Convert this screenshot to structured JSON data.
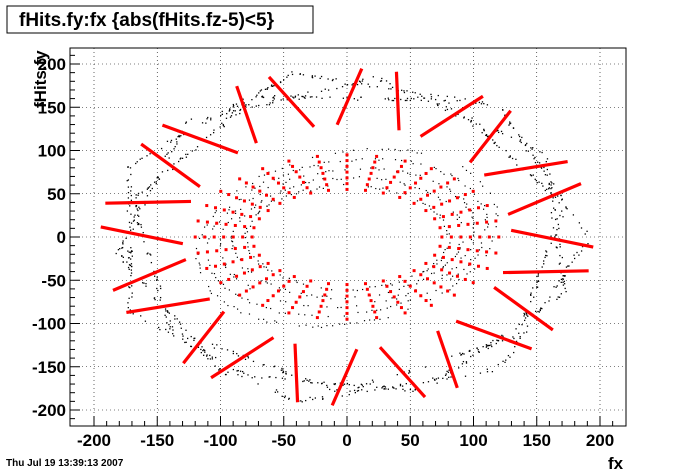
{
  "title": "fHits.fy:fx {abs(fHits.fz-5)<5}",
  "footer": "Thu Jul 19 13:39:13 2007",
  "chart_data": {
    "type": "scatter",
    "title": "fHits.fy:fx {abs(fHits.fz-5)<5}",
    "xlabel": "fx",
    "ylabel": "fHits.fy",
    "xlim": [
      -210,
      220
    ],
    "ylim": [
      -210,
      220
    ],
    "xticks": [
      -200,
      -150,
      -100,
      -50,
      0,
      50,
      100,
      150,
      200
    ],
    "yticks": [
      -200,
      -150,
      -100,
      -50,
      0,
      50,
      100,
      150,
      200
    ],
    "grid": true,
    "colors": {
      "black_hits": "#000000",
      "red_hits": "#ff0000"
    },
    "series": [
      {
        "color": "#000000",
        "marker": "dot",
        "description_points": [
          [
            -190,
            40
          ],
          [
            -185,
            0
          ],
          [
            -180,
            -60
          ],
          [
            -150,
            -110
          ],
          [
            -110,
            -140
          ],
          [
            -60,
            -165
          ],
          [
            0,
            -185
          ],
          [
            60,
            -170
          ],
          [
            120,
            -130
          ],
          [
            165,
            -70
          ],
          [
            190,
            0
          ],
          [
            180,
            60
          ],
          [
            150,
            120
          ],
          [
            100,
            160
          ],
          [
            40,
            185
          ],
          [
            -30,
            180
          ],
          [
            -90,
            160
          ],
          [
            -140,
            120
          ],
          [
            -175,
            80
          ]
        ]
      },
      {
        "color": "#ff0000",
        "marker": "segment",
        "spokes_outer": [
          {
            "angle_deg": 90,
            "r1": 130,
            "r2": 195
          },
          {
            "angle_deg": 75,
            "r1": 130,
            "r2": 195
          },
          {
            "angle_deg": 60,
            "r1": 130,
            "r2": 195
          },
          {
            "angle_deg": 45,
            "r1": 130,
            "r2": 195
          },
          {
            "angle_deg": 30,
            "r1": 130,
            "r2": 195
          },
          {
            "angle_deg": 15,
            "r1": 130,
            "r2": 195
          },
          {
            "angle_deg": 0,
            "r1": 130,
            "r2": 195
          },
          {
            "angle_deg": -15,
            "r1": 130,
            "r2": 195
          },
          {
            "angle_deg": -30,
            "r1": 130,
            "r2": 195
          },
          {
            "angle_deg": -45,
            "r1": 130,
            "r2": 195
          },
          {
            "angle_deg": -60,
            "r1": 130,
            "r2": 195
          },
          {
            "angle_deg": -75,
            "r1": 130,
            "r2": 195
          },
          {
            "angle_deg": -90,
            "r1": 130,
            "r2": 195
          },
          {
            "angle_deg": -105,
            "r1": 130,
            "r2": 195
          },
          {
            "angle_deg": -120,
            "r1": 130,
            "r2": 195
          },
          {
            "angle_deg": -135,
            "r1": 130,
            "r2": 195
          },
          {
            "angle_deg": -150,
            "r1": 130,
            "r2": 195
          },
          {
            "angle_deg": -165,
            "r1": 130,
            "r2": 195
          },
          {
            "angle_deg": 180,
            "r1": 130,
            "r2": 195
          },
          {
            "angle_deg": 165,
            "r1": 130,
            "r2": 195
          },
          {
            "angle_deg": 150,
            "r1": 130,
            "r2": 195
          },
          {
            "angle_deg": 135,
            "r1": 130,
            "r2": 195
          },
          {
            "angle_deg": 120,
            "r1": 130,
            "r2": 195
          },
          {
            "angle_deg": 105,
            "r1": 130,
            "r2": 195
          }
        ],
        "inner_ring": {
          "a": 75,
          "b": 55,
          "a_outer": 120,
          "b_outer": 95
        }
      }
    ]
  }
}
